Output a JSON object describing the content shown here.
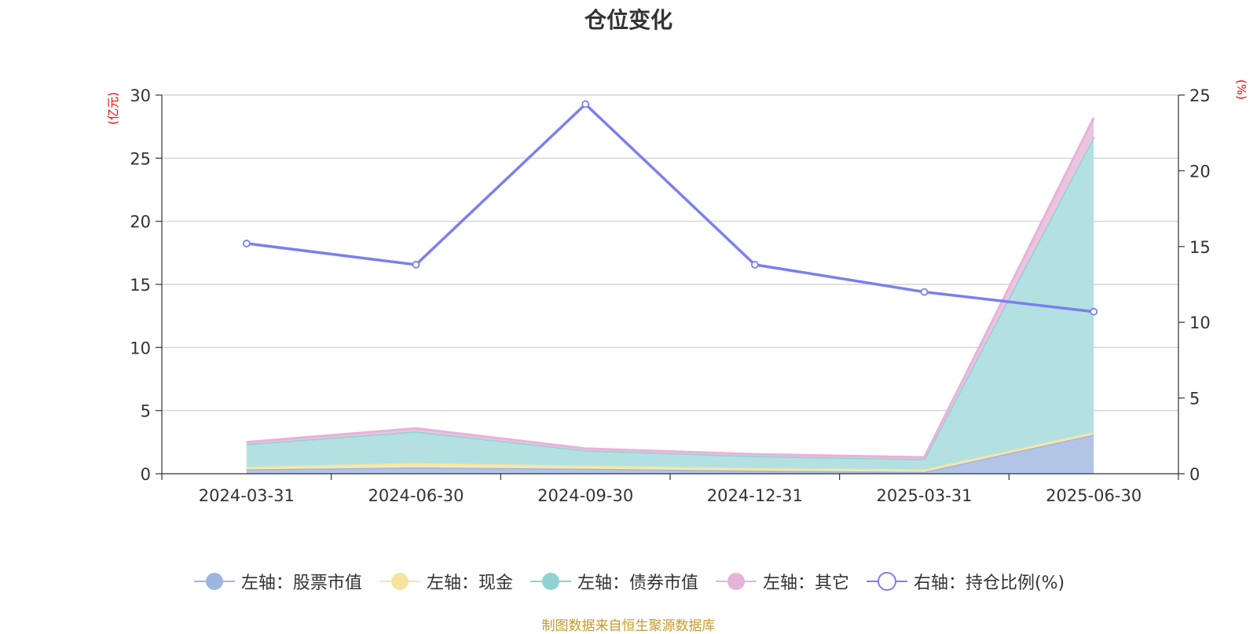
{
  "chart_data": {
    "type": "area",
    "title": "仓位变化",
    "left_axis_unit": "(亿元)",
    "right_axis_unit": "(%)",
    "categories": [
      "2024-03-31",
      "2024-06-30",
      "2024-09-30",
      "2024-12-31",
      "2025-03-31",
      "2025-06-30"
    ],
    "left_ylim": [
      0,
      30
    ],
    "left_yticks": [
      0,
      5,
      10,
      15,
      20,
      25,
      30
    ],
    "right_ylim": [
      0,
      25
    ],
    "right_yticks": [
      0,
      5,
      10,
      15,
      20,
      25
    ],
    "grid": true,
    "legend_position": "bottom",
    "stacked": true,
    "series": [
      {
        "name": "左轴：股票市值",
        "axis": "left",
        "kind": "area",
        "color": "#9eb6df",
        "fill": "#b3c5e6",
        "values": [
          0.35,
          0.5,
          0.4,
          0.25,
          0.15,
          3.1
        ]
      },
      {
        "name": "左轴：现金",
        "axis": "left",
        "kind": "area",
        "color": "#f5e3a0",
        "fill": "#f6e7b3",
        "values": [
          0.2,
          0.35,
          0.25,
          0.2,
          0.2,
          0.2
        ]
      },
      {
        "name": "左轴：债券市值",
        "axis": "left",
        "kind": "area",
        "color": "#8fd3d1",
        "fill": "#b3e1e1",
        "values": [
          1.8,
          2.5,
          1.2,
          0.95,
          0.8,
          23.4
        ]
      },
      {
        "name": "左轴：其它",
        "axis": "left",
        "kind": "area",
        "color": "#e6b3d9",
        "fill": "#ecc4e0",
        "values": [
          0.15,
          0.25,
          0.15,
          0.15,
          0.15,
          1.5
        ]
      },
      {
        "name": "右轴：持仓比例(%)",
        "axis": "right",
        "kind": "line",
        "color": "#7b7ff0",
        "values": [
          15.2,
          13.8,
          24.4,
          13.8,
          12.0,
          10.7
        ]
      }
    ]
  },
  "source_note": "制图数据来自恒生聚源数据库"
}
